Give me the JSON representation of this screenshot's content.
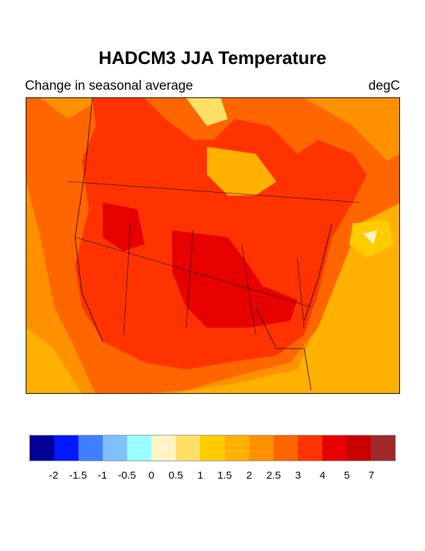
{
  "title": "HADCM3 JJA Temperature",
  "subtitle_left": "Change in seasonal average",
  "subtitle_right": "degC",
  "colorbar": {
    "labels": [
      "-2",
      "-1.5",
      "-1",
      "-0.5",
      "0",
      "0.5",
      "1",
      "1.5",
      "2",
      "2.5",
      "3",
      "4",
      "5",
      "7"
    ],
    "colors": [
      "#000099",
      "#0019ff",
      "#4080ff",
      "#80bfff",
      "#99ffff",
      "#fff4c5",
      "#ffe066",
      "#ffcc00",
      "#ffb000",
      "#ff9000",
      "#ff6600",
      "#ff3300",
      "#e60000",
      "#c80000",
      "#a02828"
    ]
  },
  "map": {
    "region": "North America",
    "variable": "JJA temperature change",
    "units": "degC"
  }
}
